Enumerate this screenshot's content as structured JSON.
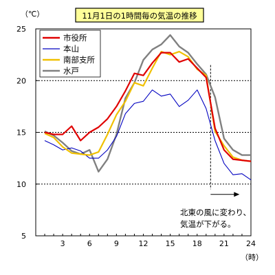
{
  "chart_data": {
    "type": "line",
    "title": "11月1日の1時間毎の気温の推移",
    "y_unit_label": "（℃）",
    "x_unit_label": "（時）",
    "xlim": [
      0,
      24
    ],
    "ylim": [
      5,
      25
    ],
    "x_ticks": [
      3,
      6,
      9,
      12,
      15,
      18,
      21,
      24
    ],
    "y_ticks": [
      5,
      10,
      15,
      20,
      25
    ],
    "dashed_gridlines_y": [
      10,
      15,
      20
    ],
    "vertical_marker_x": 19.5,
    "annotation": [
      "北東の風に変わり、",
      "気温が下がる。"
    ],
    "legend_position": "top-left",
    "x": [
      1,
      2,
      3,
      4,
      5,
      6,
      7,
      8,
      9,
      10,
      11,
      12,
      13,
      14,
      15,
      16,
      17,
      18,
      19,
      20,
      21,
      22,
      23,
      24
    ],
    "series": [
      {
        "name": "市役所",
        "color": "#e00000",
        "values": [
          15.0,
          14.8,
          14.8,
          15.6,
          14.2,
          15.0,
          15.5,
          16.3,
          17.5,
          19.0,
          20.7,
          20.5,
          21.7,
          22.7,
          22.7,
          21.8,
          22.1,
          21.2,
          20.3,
          15.4,
          13.3,
          12.4,
          12.3,
          12.2
        ]
      },
      {
        "name": "本山",
        "color": "#0000c0",
        "values": [
          14.2,
          13.8,
          13.3,
          13.5,
          13.2,
          12.5,
          12.5,
          13.3,
          14.6,
          16.8,
          17.8,
          18.0,
          19.1,
          18.5,
          18.7,
          17.5,
          18.1,
          19.1,
          17.3,
          14.2,
          12.0,
          10.9,
          11.0,
          10.4
        ]
      },
      {
        "name": "南部支所",
        "color": "#f0c000",
        "values": [
          14.9,
          14.5,
          13.6,
          13.0,
          12.9,
          12.8,
          13.1,
          14.8,
          16.7,
          18.0,
          19.8,
          19.5,
          21.2,
          22.8,
          22.5,
          22.8,
          22.3,
          21.1,
          20.5,
          15.1,
          13.7,
          12.6,
          12.3,
          12.2
        ]
      },
      {
        "name": "水戸",
        "color": "#808080",
        "values": [
          15.1,
          14.7,
          14.0,
          13.2,
          12.9,
          13.3,
          11.2,
          12.4,
          14.8,
          18.3,
          19.8,
          22.0,
          23.0,
          23.5,
          24.4,
          23.3,
          22.7,
          21.6,
          20.6,
          18.4,
          14.4,
          13.3,
          12.8,
          12.8
        ]
      }
    ]
  }
}
